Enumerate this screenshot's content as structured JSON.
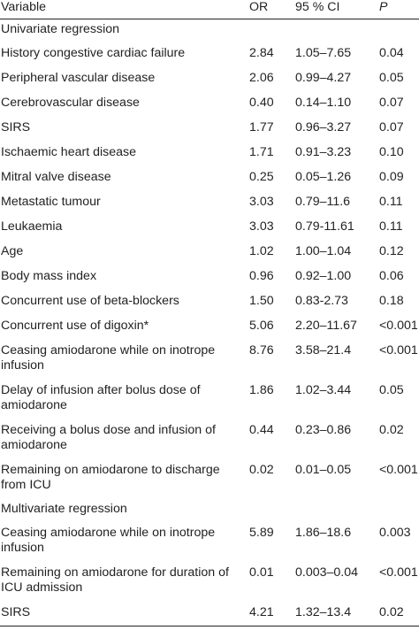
{
  "header": {
    "variable": "Variable",
    "or": "OR",
    "ci": "95 % CI",
    "p": "P"
  },
  "sections": [
    {
      "title": "Univariate regression",
      "rows": [
        {
          "variable": "History congestive cardiac failure",
          "or": "2.84",
          "ci": "1.05–7.65",
          "p": "0.04"
        },
        {
          "variable": "Peripheral vascular disease",
          "or": "2.06",
          "ci": "0.99–4.27",
          "p": "0.05"
        },
        {
          "variable": "Cerebrovascular disease",
          "or": "0.40",
          "ci": "0.14–1.10",
          "p": "0.07"
        },
        {
          "variable": "SIRS",
          "or": "1.77",
          "ci": "0.96–3.27",
          "p": "0.07"
        },
        {
          "variable": "Ischaemic heart disease",
          "or": "1.71",
          "ci": "0.91–3.23",
          "p": "0.10"
        },
        {
          "variable": "Mitral valve disease",
          "or": "0.25",
          "ci": "0.05–1.26",
          "p": "0.09"
        },
        {
          "variable": "Metastatic tumour",
          "or": "3.03",
          "ci": "0.79–11.6",
          "p": "0.11"
        },
        {
          "variable": "Leukaemia",
          "or": "3.03",
          "ci": "0.79-11.61",
          "p": "0.11"
        },
        {
          "variable": "Age",
          "or": "1.02",
          "ci": "1.00–1.04",
          "p": "0.12"
        },
        {
          "variable": "Body mass index",
          "or": "0.96",
          "ci": "0.92–1.00",
          "p": "0.06"
        },
        {
          "variable": "Concurrent use of beta-blockers",
          "or": "1.50",
          "ci": "0.83-2.73",
          "p": "0.18"
        },
        {
          "variable": "Concurrent use of digoxin*",
          "or": "5.06",
          "ci": "2.20–11.67",
          "p": "<0.001"
        },
        {
          "variable": "Ceasing amiodarone while on inotrope infusion",
          "or": "8.76",
          "ci": "3.58–21.4",
          "p": "<0.001"
        },
        {
          "variable": "Delay of infusion after bolus dose of amiodarone",
          "or": "1.86",
          "ci": "1.02–3.44",
          "p": "0.05"
        },
        {
          "variable": "Receiving a bolus dose and infusion of amiodarone",
          "or": "0.44",
          "ci": "0.23–0.86",
          "p": "0.02"
        },
        {
          "variable": "Remaining on amiodarone to discharge from ICU",
          "or": "0.02",
          "ci": "0.01–0.05",
          "p": "<0.001"
        }
      ]
    },
    {
      "title": "Multivariate regression",
      "rows": [
        {
          "variable": "Ceasing amiodarone while on inotrope infusion",
          "or": "5.89",
          "ci": "1.86–18.6",
          "p": "0.003"
        },
        {
          "variable": "Remaining on amiodarone for duration of ICU admission",
          "or": "0.01",
          "ci": "0.003–0.04",
          "p": "<0.001"
        },
        {
          "variable": "SIRS",
          "or": "4.21",
          "ci": "1.32–13.4",
          "p": "0.02"
        }
      ]
    }
  ]
}
